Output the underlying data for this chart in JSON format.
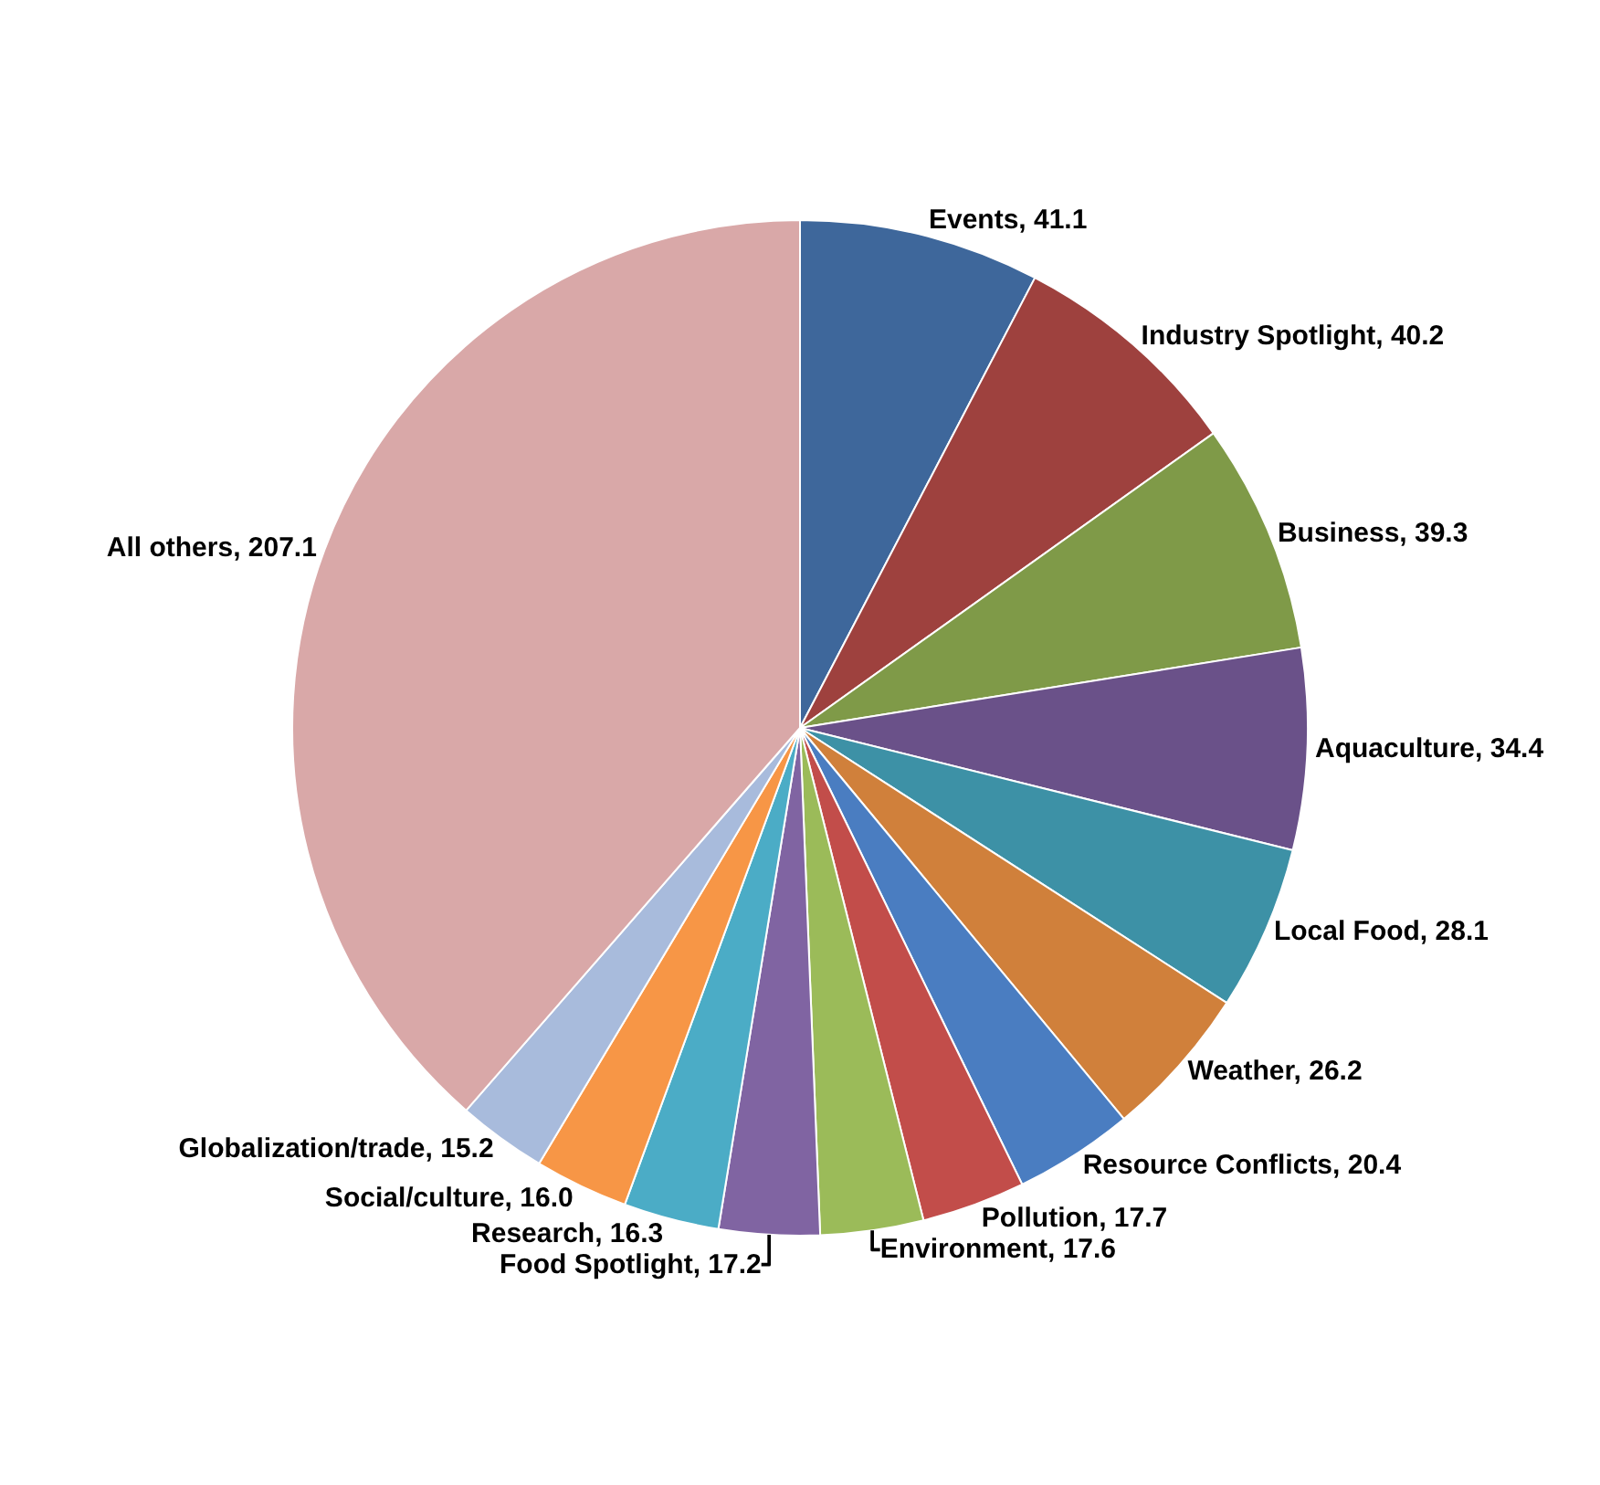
{
  "chart_data": {
    "type": "pie",
    "categories": [
      "Events",
      "Industry Spotlight",
      "Business",
      "Aquaculture",
      "Local Food",
      "Weather",
      "Resource Conflicts",
      "Pollution",
      "Environment",
      "Food Spotlight",
      "Research",
      "Social/culture",
      "Globalization/trade",
      "All others"
    ],
    "values": [
      41.1,
      40.2,
      39.3,
      34.4,
      28.1,
      26.2,
      20.4,
      17.7,
      17.6,
      17.2,
      16.3,
      16.0,
      15.2,
      207.1
    ],
    "value_labels": [
      "41.1",
      "40.2",
      "39.3",
      "34.4",
      "28.1",
      "26.2",
      "20.4",
      "17.7",
      "17.6",
      "17.2",
      "16.3",
      "16.0",
      "15.2",
      "207.1"
    ],
    "colors": [
      "#3e679b",
      "#9e413e",
      "#7f9a48",
      "#6a5189",
      "#3d91a6",
      "#d0803b",
      "#4a7dc1",
      "#c24d4a",
      "#9bbb59",
      "#8064a2",
      "#4bacc6",
      "#f79646",
      "#a8bbdc",
      "#d9a8a8"
    ],
    "legend": false
  }
}
